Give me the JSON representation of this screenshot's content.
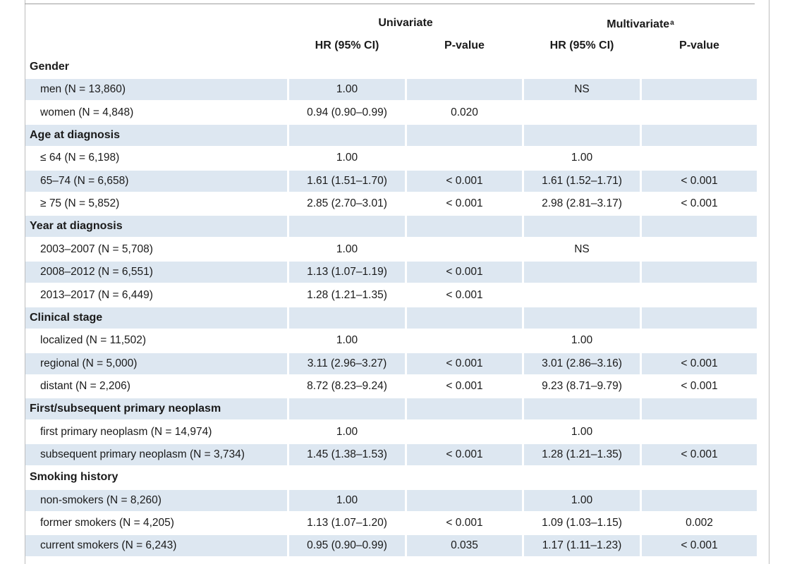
{
  "header": {
    "univariate": "Univariate",
    "multivariate": "Multivariate",
    "multivariate_footnote": "a",
    "hr_ci": "HR (95% CI)",
    "p_value": "P-value"
  },
  "rows": [
    {
      "type": "section",
      "label": "Gender",
      "uni_hr": "",
      "uni_p": "",
      "multi_hr": "",
      "multi_p": ""
    },
    {
      "type": "item",
      "label": "men (N = 13,860)",
      "uni_hr": "1.00",
      "uni_p": "",
      "multi_hr": "NS",
      "multi_p": ""
    },
    {
      "type": "item",
      "label": "women (N = 4,848)",
      "uni_hr": "0.94 (0.90–0.99)",
      "uni_p": "0.020",
      "multi_hr": "",
      "multi_p": ""
    },
    {
      "type": "section",
      "label": "Age at diagnosis",
      "uni_hr": "",
      "uni_p": "",
      "multi_hr": "",
      "multi_p": ""
    },
    {
      "type": "item",
      "label": "≤ 64 (N = 6,198)",
      "uni_hr": "1.00",
      "uni_p": "",
      "multi_hr": "1.00",
      "multi_p": ""
    },
    {
      "type": "item",
      "label": "65–74 (N = 6,658)",
      "uni_hr": "1.61 (1.51–1.70)",
      "uni_p": "< 0.001",
      "multi_hr": "1.61 (1.52–1.71)",
      "multi_p": "< 0.001"
    },
    {
      "type": "item",
      "label": "≥ 75 (N = 5,852)",
      "uni_hr": "2.85 (2.70–3.01)",
      "uni_p": "< 0.001",
      "multi_hr": "2.98 (2.81–3.17)",
      "multi_p": "< 0.001"
    },
    {
      "type": "section",
      "label": "Year at diagnosis",
      "uni_hr": "",
      "uni_p": "",
      "multi_hr": "",
      "multi_p": ""
    },
    {
      "type": "item",
      "label": "2003–2007 (N = 5,708)",
      "uni_hr": "1.00",
      "uni_p": "",
      "multi_hr": "NS",
      "multi_p": ""
    },
    {
      "type": "item",
      "label": "2008–2012 (N = 6,551)",
      "uni_hr": "1.13 (1.07–1.19)",
      "uni_p": "< 0.001",
      "multi_hr": "",
      "multi_p": ""
    },
    {
      "type": "item",
      "label": "2013–2017 (N = 6,449)",
      "uni_hr": "1.28 (1.21–1.35)",
      "uni_p": "< 0.001",
      "multi_hr": "",
      "multi_p": ""
    },
    {
      "type": "section",
      "label": "Clinical stage",
      "uni_hr": "",
      "uni_p": "",
      "multi_hr": "",
      "multi_p": ""
    },
    {
      "type": "item",
      "label": "localized (N = 11,502)",
      "uni_hr": "1.00",
      "uni_p": "",
      "multi_hr": "1.00",
      "multi_p": ""
    },
    {
      "type": "item",
      "label": "regional (N = 5,000)",
      "uni_hr": "3.11 (2.96–3.27)",
      "uni_p": "< 0.001",
      "multi_hr": "3.01 (2.86–3.16)",
      "multi_p": "< 0.001"
    },
    {
      "type": "item",
      "label": "distant (N = 2,206)",
      "uni_hr": "8.72 (8.23–9.24)",
      "uni_p": "< 0.001",
      "multi_hr": "9.23 (8.71–9.79)",
      "multi_p": "< 0.001"
    },
    {
      "type": "section",
      "label": "First/subsequent primary neoplasm",
      "uni_hr": "",
      "uni_p": "",
      "multi_hr": "",
      "multi_p": ""
    },
    {
      "type": "item",
      "label": "first primary neoplasm (N = 14,974)",
      "uni_hr": "1.00",
      "uni_p": "",
      "multi_hr": "1.00",
      "multi_p": ""
    },
    {
      "type": "item",
      "label": "subsequent primary neoplasm (N = 3,734)",
      "uni_hr": "1.45 (1.38–1.53)",
      "uni_p": "< 0.001",
      "multi_hr": "1.28 (1.21–1.35)",
      "multi_p": "< 0.001"
    },
    {
      "type": "section",
      "label": "Smoking history",
      "uni_hr": "",
      "uni_p": "",
      "multi_hr": "",
      "multi_p": ""
    },
    {
      "type": "item",
      "label": "non-smokers (N = 8,260)",
      "uni_hr": "1.00",
      "uni_p": "",
      "multi_hr": "1.00",
      "multi_p": ""
    },
    {
      "type": "item",
      "label": "former smokers (N = 4,205)",
      "uni_hr": "1.13 (1.07–1.20)",
      "uni_p": "< 0.001",
      "multi_hr": "1.09 (1.03–1.15)",
      "multi_p": "0.002"
    },
    {
      "type": "item",
      "label": "current smokers (N = 6,243)",
      "uni_hr": "0.95 (0.90–0.99)",
      "uni_p": "0.035",
      "multi_hr": "1.17 (1.11–1.23)",
      "multi_p": "< 0.001"
    }
  ]
}
